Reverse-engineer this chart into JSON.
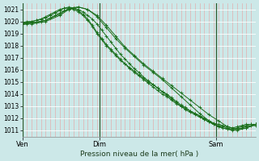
{
  "title": "Pression niveau de la mer( hPa )",
  "bg_color": "#cce8e8",
  "grid_color_v": "#e8a0a0",
  "grid_color_h": "#ffffff",
  "line_color": "#1a6e1a",
  "ylim": [
    1010.5,
    1021.5
  ],
  "yticks": [
    1011,
    1012,
    1013,
    1014,
    1015,
    1016,
    1017,
    1018,
    1019,
    1020,
    1021
  ],
  "xtick_labels": [
    "Ven",
    "Dim",
    "Sam"
  ],
  "xtick_positions": [
    0.0,
    0.33,
    0.83
  ],
  "series": [
    {
      "x": [
        0.0,
        0.02,
        0.04,
        0.06,
        0.08,
        0.1,
        0.12,
        0.14,
        0.16,
        0.18,
        0.2,
        0.22,
        0.24,
        0.26,
        0.28,
        0.3,
        0.32,
        0.34,
        0.36,
        0.38,
        0.4,
        0.42,
        0.44,
        0.46,
        0.48,
        0.5,
        0.52,
        0.54,
        0.56,
        0.58,
        0.6,
        0.62,
        0.64,
        0.66,
        0.68,
        0.7,
        0.72,
        0.74,
        0.76,
        0.78,
        0.8,
        0.82,
        0.84,
        0.86,
        0.88,
        0.9,
        0.92,
        0.94,
        0.96,
        0.98,
        1.0
      ],
      "y": [
        1019.8,
        1019.8,
        1019.9,
        1019.9,
        1020.0,
        1020.1,
        1020.3,
        1020.5,
        1020.7,
        1020.9,
        1021.0,
        1021.1,
        1021.0,
        1020.8,
        1020.5,
        1020.2,
        1019.8,
        1019.3,
        1018.8,
        1018.3,
        1017.8,
        1017.3,
        1016.9,
        1016.5,
        1016.1,
        1015.8,
        1015.4,
        1015.1,
        1014.8,
        1014.5,
        1014.2,
        1013.9,
        1013.6,
        1013.3,
        1013.0,
        1012.7,
        1012.5,
        1012.3,
        1012.1,
        1011.9,
        1011.7,
        1011.5,
        1011.4,
        1011.3,
        1011.2,
        1011.1,
        1011.2,
        1011.3,
        1011.4,
        1011.5,
        1011.5
      ]
    },
    {
      "x": [
        0.0,
        0.02,
        0.04,
        0.06,
        0.08,
        0.1,
        0.12,
        0.14,
        0.16,
        0.18,
        0.2,
        0.22,
        0.24,
        0.26,
        0.28,
        0.3,
        0.32,
        0.34,
        0.36,
        0.38,
        0.4,
        0.42,
        0.44,
        0.46,
        0.48,
        0.5,
        0.52,
        0.54,
        0.56,
        0.58,
        0.6,
        0.62,
        0.64,
        0.66,
        0.68,
        0.7,
        0.72,
        0.74,
        0.76,
        0.78,
        0.8,
        0.82,
        0.84,
        0.86,
        0.88,
        0.9,
        0.92,
        0.94,
        0.96,
        0.98,
        1.0
      ],
      "y": [
        1019.9,
        1019.9,
        1020.0,
        1020.1,
        1020.2,
        1020.4,
        1020.6,
        1020.8,
        1021.0,
        1021.1,
        1021.1,
        1021.0,
        1020.8,
        1020.5,
        1020.1,
        1019.6,
        1019.0,
        1018.5,
        1018.0,
        1017.6,
        1017.2,
        1016.8,
        1016.5,
        1016.1,
        1015.8,
        1015.5,
        1015.2,
        1014.9,
        1014.6,
        1014.3,
        1014.0,
        1013.8,
        1013.5,
        1013.2,
        1013.0,
        1012.8,
        1012.6,
        1012.4,
        1012.2,
        1012.0,
        1011.8,
        1011.6,
        1011.5,
        1011.4,
        1011.3,
        1011.2,
        1011.3,
        1011.4,
        1011.5,
        1011.5,
        1011.5
      ]
    },
    {
      "x": [
        0.0,
        0.02,
        0.04,
        0.06,
        0.08,
        0.1,
        0.12,
        0.14,
        0.16,
        0.18,
        0.2,
        0.22,
        0.24,
        0.26,
        0.28,
        0.3,
        0.32,
        0.34,
        0.36,
        0.38,
        0.4,
        0.42,
        0.44,
        0.46,
        0.48,
        0.5,
        0.52,
        0.54,
        0.56,
        0.58,
        0.6,
        0.62,
        0.64,
        0.66,
        0.68,
        0.7,
        0.72,
        0.74,
        0.76,
        0.78,
        0.8,
        0.82,
        0.84,
        0.86,
        0.88,
        0.9,
        0.92,
        0.94,
        0.96,
        0.98,
        1.0
      ],
      "y": [
        1019.9,
        1020.0,
        1020.0,
        1020.1,
        1020.2,
        1020.3,
        1020.5,
        1020.7,
        1020.9,
        1021.1,
        1021.2,
        1021.1,
        1020.9,
        1020.6,
        1020.2,
        1019.7,
        1019.1,
        1018.6,
        1018.1,
        1017.7,
        1017.3,
        1016.9,
        1016.5,
        1016.2,
        1015.9,
        1015.6,
        1015.3,
        1015.0,
        1014.8,
        1014.5,
        1014.2,
        1014.0,
        1013.7,
        1013.4,
        1013.1,
        1012.9,
        1012.6,
        1012.4,
        1012.2,
        1011.9,
        1011.7,
        1011.5,
        1011.3,
        1011.2,
        1011.1,
        1011.0,
        1011.1,
        1011.2,
        1011.3,
        1011.4,
        1011.4
      ]
    },
    {
      "x": [
        0.0,
        0.04,
        0.1,
        0.16,
        0.2,
        0.24,
        0.28,
        0.32,
        0.36,
        0.4,
        0.44,
        0.48,
        0.52,
        0.56,
        0.6,
        0.64,
        0.68,
        0.72,
        0.76,
        0.8,
        0.84,
        0.88,
        0.92,
        0.96,
        1.0
      ],
      "y": [
        1019.8,
        1019.8,
        1020.0,
        1020.5,
        1021.0,
        1021.2,
        1021.0,
        1020.5,
        1019.7,
        1018.8,
        1017.9,
        1017.2,
        1016.5,
        1015.9,
        1015.3,
        1014.7,
        1014.1,
        1013.5,
        1012.9,
        1012.3,
        1011.8,
        1011.3,
        1011.1,
        1011.2,
        1011.5
      ]
    },
    {
      "x": [
        0.0,
        0.04,
        0.1,
        0.16,
        0.2,
        0.24,
        0.28,
        0.32,
        0.36,
        0.4,
        0.44,
        0.48,
        0.52,
        0.56,
        0.6,
        0.64,
        0.68,
        0.72,
        0.76,
        0.8,
        0.84,
        0.88,
        0.92,
        0.96,
        1.0
      ],
      "y": [
        1019.9,
        1019.9,
        1020.1,
        1020.6,
        1021.1,
        1021.2,
        1021.0,
        1020.4,
        1019.5,
        1018.6,
        1017.8,
        1017.1,
        1016.4,
        1015.8,
        1015.2,
        1014.5,
        1013.8,
        1013.1,
        1012.4,
        1011.8,
        1011.3,
        1011.1,
        1011.0,
        1011.2,
        1011.5
      ]
    }
  ],
  "vlines": [
    0.0,
    0.33,
    0.83
  ]
}
